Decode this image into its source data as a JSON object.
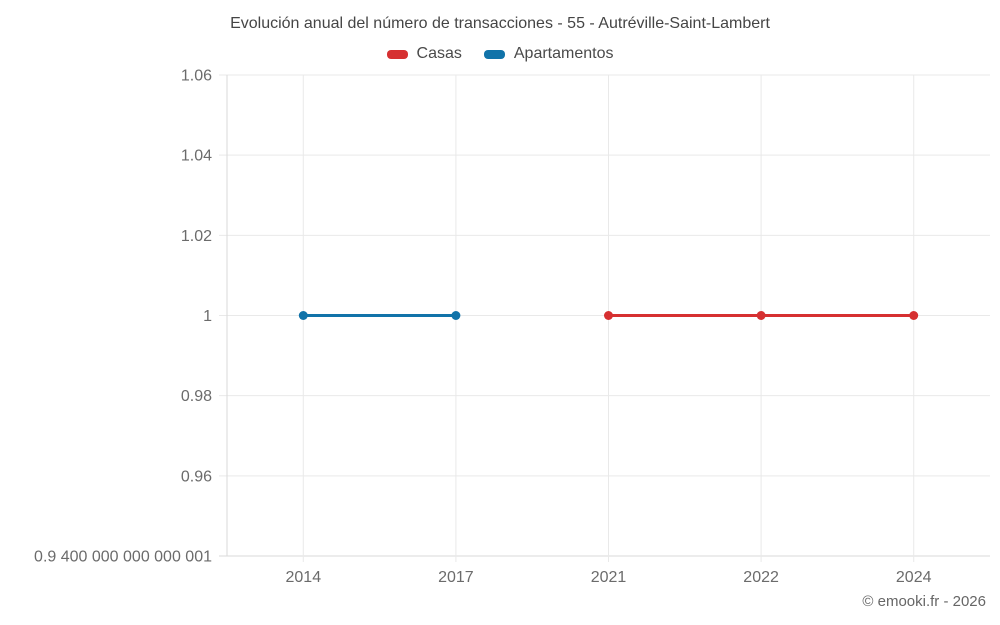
{
  "title": "Evolución anual del número de transacciones - 55 - Autréville-Saint-Lambert",
  "footer": "© emooki.fr - 2026",
  "chart_data": {
    "type": "line",
    "title": "Evolución anual del número de transacciones - 55 - Autréville-Saint-Lambert",
    "categories": [
      "2014",
      "2017",
      "2021",
      "2022",
      "2024"
    ],
    "series": [
      {
        "name": "Casas",
        "color": "#d63031",
        "values": [
          null,
          null,
          1,
          1,
          1
        ]
      },
      {
        "name": "Apartamentos",
        "color": "#1173a9",
        "values": [
          1,
          1,
          null,
          null,
          null
        ]
      }
    ],
    "xlabel": "",
    "ylabel": "",
    "ylim": [
      0.9400000000000001,
      1.06
    ],
    "yticks": [
      {
        "value": 0.9400000000000001,
        "label": "0.9 400 000 000 000 001"
      },
      {
        "value": 0.96,
        "label": "0.96"
      },
      {
        "value": 0.98,
        "label": "0.98"
      },
      {
        "value": 1,
        "label": "1"
      },
      {
        "value": 1.02,
        "label": "1.02"
      },
      {
        "value": 1.04,
        "label": "1.04"
      },
      {
        "value": 1.06,
        "label": "1.06"
      }
    ],
    "grid": true,
    "legend_position": "top",
    "colors": {
      "grid": "#e9e9e9",
      "axis_border": "#dadada",
      "tick_label": "#6b6b6b",
      "title_text": "#454545"
    }
  }
}
